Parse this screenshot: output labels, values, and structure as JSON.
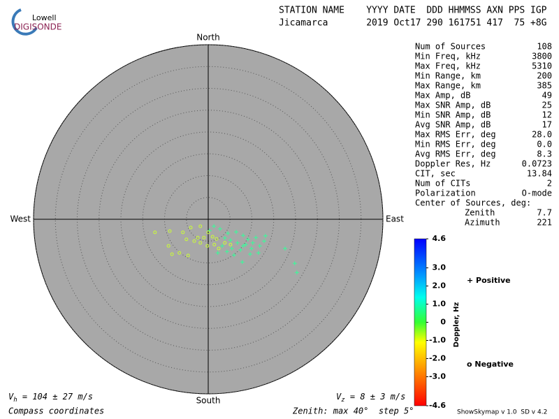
{
  "logo": {
    "top": "Lowell",
    "bottom": "DIGISONDE"
  },
  "header": {
    "labels": "STATION NAME    YYYY DATE  DDD HHMMSS AXN PPS IGP",
    "values": "Jicamarca       2019 Oct17 290 161751 417  75 +8G"
  },
  "stats": [
    [
      "Num of Sources",
      "108"
    ],
    [
      "Min Freq, kHz",
      "3800"
    ],
    [
      "Max Freq, kHz",
      "5310"
    ],
    [
      "Min Range, km",
      "200"
    ],
    [
      "Max Range, km",
      "385"
    ],
    [
      "Max Amp, dB",
      "49"
    ],
    [
      "Max SNR Amp, dB",
      "25"
    ],
    [
      "Min SNR Amp, dB",
      "12"
    ],
    [
      "Avg SNR Amp, dB",
      "17"
    ],
    [
      "Max RMS Err, deg",
      "28.0"
    ],
    [
      "Min RMS Err, deg",
      "0.0"
    ],
    [
      "Avg RMS Err, deg",
      "8.3"
    ],
    [
      "Doppler Res, Hz",
      "0.0723"
    ],
    [
      "CIT, sec",
      "13.84"
    ],
    [
      "Num of CITs",
      "2"
    ],
    [
      "Polarization",
      "O-mode"
    ]
  ],
  "center": {
    "title": "Center of Sources, deg:",
    "rows": [
      [
        "Zenith",
        "7.7"
      ],
      [
        "Azimuth",
        "221"
      ]
    ]
  },
  "footer": {
    "vh": {
      "symbol": "V",
      "sub": "h",
      "text": " = 104 ± 27 m/s"
    },
    "vz": {
      "symbol": "V",
      "sub": "z",
      "text": " = 8 ± 3 m/s"
    },
    "coords": "Compass coordinates",
    "zenith": "Zenith: max 40°  step 5°",
    "version": "ShowSkymap v 1.0  SD v 4.2"
  },
  "colorbar": {
    "label": "Doppler, Hz",
    "lim": [
      -4.6,
      4.6
    ],
    "ticks": [
      {
        "value": 4.6,
        "label": "4.6"
      },
      {
        "value": 3,
        "label": "3.0"
      },
      {
        "value": 2,
        "label": "2.0"
      },
      {
        "value": 1,
        "label": "1.0"
      },
      0,
      {
        "value": -1,
        "label": "-1.0"
      },
      {
        "value": -2,
        "label": "-2.0"
      },
      {
        "value": -3,
        "label": "-3.0"
      },
      {
        "value": -4.6,
        "label": "-4.6"
      }
    ]
  },
  "chart_data": {
    "type": "scatter",
    "directions": {
      "north": "North",
      "south": "South",
      "east": "East",
      "west": "West"
    },
    "rlim": [
      0,
      40
    ],
    "rticks": [
      5,
      10,
      15,
      20,
      25,
      30,
      35,
      40
    ],
    "series": [
      {
        "name": "Positive",
        "color": "#33ff99",
        "legend_color": "#0000cc",
        "marker": "plus",
        "x": [
          0.3,
          2.7,
          4.5,
          6.4,
          8.0,
          9.1,
          10.9,
          12.8,
          11.8,
          9.9,
          8.0,
          6.7,
          5.1,
          3.8,
          3.2,
          4.3,
          5.9,
          7.8,
          9.6,
          11.5,
          13.1,
          17.6,
          19.8,
          20.3,
          5.4,
          7.4,
          8.6,
          10.2,
          2.2,
          1.3
        ],
        "values": [
          -2.6,
          -2.2,
          -3.2,
          -2.9,
          -3.7,
          -4.6,
          -4.2,
          -5.0,
          -6.1,
          -6.7,
          -6.1,
          -5.4,
          -4.8,
          -4.3,
          -6.1,
          -7.4,
          -8.2,
          -9.8,
          -8.0,
          -7.7,
          -3.8,
          -6.7,
          -10.1,
          -12.2,
          -6.7,
          -7.0,
          -5.8,
          -5.4,
          -7.7,
          -1.6
        ]
      },
      {
        "name": "Negative",
        "color": "#ccff33",
        "legend_color": "#cc0000",
        "marker": "circle",
        "x": [
          -12.2,
          -8.8,
          -5.8,
          -4.0,
          -1.8,
          -2.4,
          -1.0,
          -3.2,
          -5.0,
          -1.8,
          -0.2,
          -6.6,
          -8.3,
          -4.6,
          -9.1,
          0,
          1.0,
          1.9,
          1.4,
          3.8,
          5.1,
          2.4
        ],
        "values": [
          -3.0,
          -2.7,
          -3.0,
          -1.9,
          -1.6,
          -4.2,
          -4.2,
          -5.0,
          -4.6,
          -5.4,
          -6.1,
          -7.7,
          -8.0,
          -8.3,
          -6.1,
          -3.0,
          -4.0,
          -4.5,
          -5.8,
          -5.4,
          -5.8,
          -6.7
        ]
      }
    ]
  }
}
